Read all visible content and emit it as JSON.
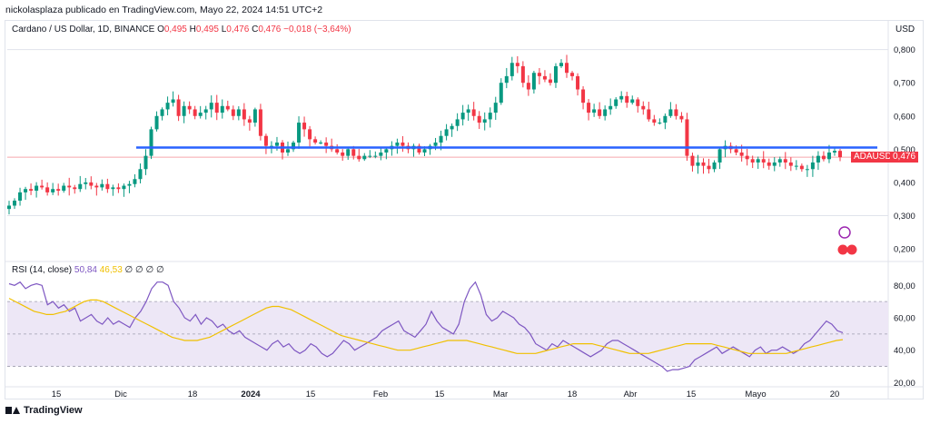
{
  "header": {
    "publisher_line": "nickolasplaza publicado en TradingView.com, Mayo 22, 2024 14:51 UTC+2"
  },
  "legend": {
    "symbol": "Cardano / US Dollar, 1D, BINANCE",
    "o_key": "O",
    "o_val": "0,495",
    "h_key": "H",
    "h_val": "0,495",
    "l_key": "L",
    "l_val": "0,476",
    "c_key": "C",
    "c_val": "0,476",
    "change": "−0,018 (−3,64%)"
  },
  "currency": "USD",
  "price_tag": {
    "ticker": "ADAUSD",
    "value": "0,476",
    "color": "#f23645"
  },
  "rsi_legend": {
    "label": "RSI (14, close)",
    "rsi_val": "50,84",
    "ma_val": "46,53",
    "extra": "∅ ∅ ∅ ∅"
  },
  "footer": {
    "brand": "TradingView"
  },
  "colors": {
    "up": "#089981",
    "down": "#f23645",
    "support": "#2962ff",
    "rsi": "#7e57c2",
    "rsi_ma": "#f0c000",
    "band": "#ede7f6"
  },
  "chart_data": [
    {
      "type": "candlestick",
      "title": "Cardano / US Dollar, 1D, BINANCE",
      "x_ticks": [
        "15",
        "Dic",
        "18",
        "2024",
        "15",
        "Feb",
        "15",
        "Mar",
        "18",
        "Abr",
        "15",
        "Mayo",
        "20"
      ],
      "y_ticks": [
        "0,800",
        "0,700",
        "0,600",
        "0,500",
        "0,400",
        "0,300",
        "0,200"
      ],
      "ylim": [
        0.17,
        0.84
      ],
      "support_line": 0.505,
      "last_close": 0.476,
      "close_values": [
        0.33,
        0.345,
        0.37,
        0.38,
        0.375,
        0.39,
        0.385,
        0.37,
        0.38,
        0.375,
        0.39,
        0.385,
        0.38,
        0.395,
        0.4,
        0.39,
        0.385,
        0.395,
        0.38,
        0.385,
        0.38,
        0.39,
        0.395,
        0.41,
        0.44,
        0.48,
        0.56,
        0.6,
        0.62,
        0.64,
        0.65,
        0.6,
        0.63,
        0.62,
        0.6,
        0.61,
        0.62,
        0.64,
        0.61,
        0.63,
        0.62,
        0.6,
        0.62,
        0.59,
        0.58,
        0.62,
        0.54,
        0.51,
        0.51,
        0.52,
        0.49,
        0.5,
        0.52,
        0.58,
        0.56,
        0.53,
        0.52,
        0.52,
        0.51,
        0.5,
        0.49,
        0.48,
        0.5,
        0.48,
        0.47,
        0.48,
        0.48,
        0.48,
        0.49,
        0.5,
        0.51,
        0.52,
        0.51,
        0.5,
        0.51,
        0.49,
        0.5,
        0.51,
        0.52,
        0.54,
        0.56,
        0.57,
        0.59,
        0.61,
        0.62,
        0.6,
        0.58,
        0.59,
        0.61,
        0.64,
        0.7,
        0.72,
        0.76,
        0.75,
        0.7,
        0.68,
        0.73,
        0.72,
        0.71,
        0.7,
        0.75,
        0.76,
        0.73,
        0.72,
        0.68,
        0.64,
        0.61,
        0.62,
        0.6,
        0.62,
        0.63,
        0.65,
        0.66,
        0.64,
        0.65,
        0.63,
        0.62,
        0.59,
        0.58,
        0.58,
        0.6,
        0.62,
        0.6,
        0.59,
        0.48,
        0.45,
        0.46,
        0.45,
        0.44,
        0.46,
        0.5,
        0.51,
        0.5,
        0.49,
        0.48,
        0.47,
        0.46,
        0.47,
        0.46,
        0.45,
        0.46,
        0.47,
        0.46,
        0.45,
        0.45,
        0.44,
        0.44,
        0.46,
        0.48,
        0.47,
        0.49,
        0.495,
        0.476
      ]
    },
    {
      "type": "line",
      "title": "RSI (14, close)",
      "y_ticks": [
        "80,00",
        "60,00",
        "40,00",
        "20,00"
      ],
      "ylim": [
        18,
        88
      ],
      "bands": [
        70,
        50,
        30
      ],
      "series": [
        {
          "name": "RSI",
          "values": [
            81,
            80,
            82,
            78,
            80,
            81,
            80,
            68,
            70,
            66,
            68,
            64,
            66,
            58,
            60,
            62,
            58,
            56,
            60,
            56,
            58,
            56,
            54,
            60,
            64,
            70,
            78,
            82,
            82,
            80,
            70,
            66,
            60,
            58,
            62,
            56,
            60,
            58,
            54,
            56,
            52,
            50,
            52,
            48,
            46,
            44,
            42,
            40,
            44,
            46,
            42,
            44,
            40,
            38,
            40,
            44,
            42,
            38,
            36,
            38,
            42,
            46,
            44,
            40,
            42,
            44,
            46,
            48,
            52,
            54,
            56,
            58,
            52,
            50,
            48,
            52,
            56,
            64,
            58,
            54,
            52,
            50,
            56,
            70,
            78,
            82,
            74,
            62,
            58,
            60,
            64,
            62,
            60,
            56,
            54,
            50,
            44,
            42,
            40,
            44,
            42,
            46,
            44,
            42,
            40,
            38,
            36,
            38,
            40,
            44,
            46,
            46,
            44,
            42,
            40,
            38,
            36,
            34,
            32,
            30,
            27,
            28,
            28,
            29,
            30,
            34,
            36,
            38,
            40,
            42,
            38,
            40,
            42,
            40,
            38,
            36,
            40,
            42,
            38,
            40,
            40,
            42,
            40,
            38,
            40,
            44,
            46,
            50,
            54,
            58,
            56,
            52,
            50.84
          ]
        },
        {
          "name": "MA",
          "values": [
            72,
            70,
            68,
            66,
            64,
            63,
            62,
            62,
            63,
            64,
            66,
            68,
            70,
            71,
            71,
            70,
            68,
            66,
            64,
            62,
            60,
            58,
            56,
            54,
            52,
            50,
            48,
            47,
            46,
            46,
            46,
            47,
            48,
            50,
            52,
            54,
            56,
            58,
            60,
            62,
            64,
            66,
            67,
            67,
            66,
            65,
            63,
            61,
            59,
            57,
            55,
            53,
            51,
            49,
            48,
            47,
            46,
            45,
            44,
            43,
            42,
            41,
            40,
            40,
            40,
            41,
            42,
            43,
            44,
            45,
            46,
            46,
            46,
            46,
            45,
            44,
            43,
            42,
            41,
            40,
            39,
            38,
            38,
            38,
            38,
            39,
            40,
            41,
            42,
            43,
            44,
            44,
            44,
            44,
            43,
            42,
            41,
            40,
            39,
            38,
            38,
            38,
            38,
            39,
            40,
            41,
            42,
            43,
            44,
            44,
            44,
            44,
            44,
            43,
            42,
            41,
            40,
            39,
            38,
            38,
            38,
            38,
            38,
            38,
            38,
            39,
            40,
            41,
            42,
            43,
            44,
            45,
            46,
            46.53
          ]
        }
      ]
    }
  ]
}
